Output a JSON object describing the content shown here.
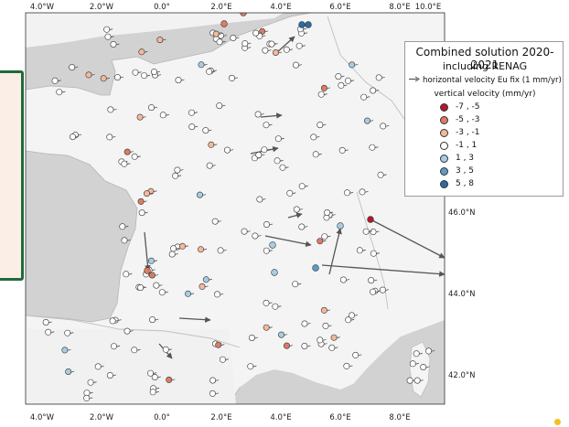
{
  "legend": {
    "title": "Combined solution 2020-2021",
    "subtitle": "including RENAG",
    "horizontal_label": "horizontal velocity Eu fix (1 mm/yr)",
    "vertical_title": "vertical velocity (mm/yr)",
    "classes": [
      {
        "label": "-7 , -5",
        "color": "#b2182b"
      },
      {
        "label": "-5 , -3",
        "color": "#de7b65"
      },
      {
        "label": "-3 , -1",
        "color": "#f4b89b"
      },
      {
        "label": "-1 , 1",
        "color": "#ffffff"
      },
      {
        "label": "1 , 3",
        "color": "#a6cde3"
      },
      {
        "label": "3 , 5",
        "color": "#5b9bca"
      },
      {
        "label": "5 , 8",
        "color": "#2a6aa5"
      }
    ]
  },
  "axes": {
    "lon_top": [
      "4.0°W",
      "2.0°W",
      "0.0°",
      "2.0°E",
      "4.0°E",
      "6.0°E",
      "8.0°E",
      "10.0°E"
    ],
    "lon_bottom": [
      "4.0°W",
      "2.0°W",
      "0.0°",
      "2.0°E",
      "4.0°E",
      "6.0°E",
      "8.0°E"
    ],
    "lat_right": [
      "46.0°N",
      "44.0°N",
      "42.0°N"
    ]
  },
  "colors": {
    "sea": "#d2d2d2",
    "land": "#f4f4f4",
    "border": "#b5b5b5"
  }
}
